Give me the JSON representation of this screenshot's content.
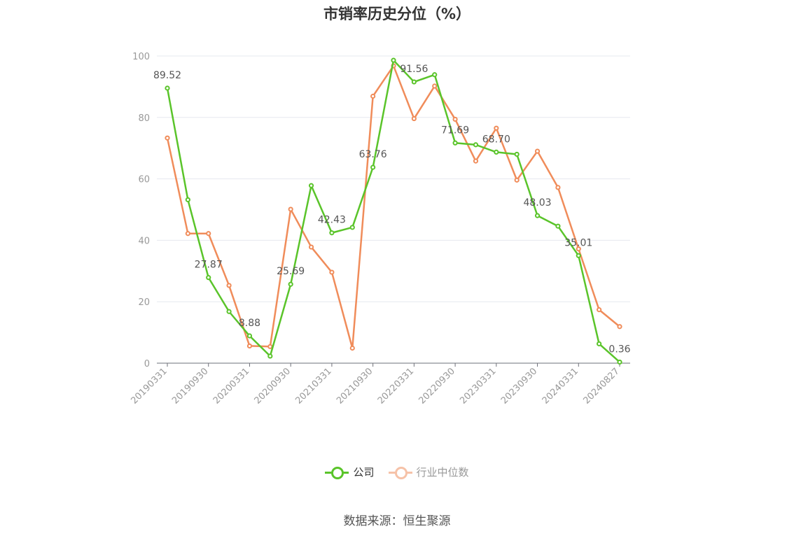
{
  "chart_data": {
    "type": "line",
    "title": "市销率历史分位（%）",
    "source": "数据来源：恒生聚源",
    "ylim": [
      0,
      100
    ],
    "y_ticks": [
      0,
      20,
      40,
      60,
      80,
      100
    ],
    "x_tick_labels": [
      "20190331",
      "20190930",
      "20200331",
      "20200930",
      "20210331",
      "20210930",
      "20220331",
      "20220930",
      "20230331",
      "20230930",
      "20240331",
      "20240827"
    ],
    "x_tick_indices": [
      0,
      2,
      4,
      6,
      8,
      10,
      12,
      14,
      16,
      18,
      20,
      22
    ],
    "grid": true,
    "legend_position": "bottom",
    "series": [
      {
        "name": "公司",
        "color": "#5ac42a",
        "values": [
          89.52,
          53.2,
          27.87,
          16.8,
          8.88,
          2.3,
          25.69,
          57.8,
          42.43,
          44.2,
          63.76,
          98.6,
          91.56,
          93.9,
          71.69,
          71.1,
          68.7,
          68.0,
          48.03,
          44.6,
          35.01,
          6.3,
          0.36
        ],
        "labels": {
          "0": "89.52",
          "2": "27.87",
          "4": "8.88",
          "6": "25.69",
          "8": "42.43",
          "10": "63.76",
          "12": "91.56",
          "14": "71.69",
          "16": "68.70",
          "18": "48.03",
          "20": "35.01",
          "22": "0.36"
        }
      },
      {
        "name": "行业中位数",
        "color": "#f08c5a",
        "values": [
          73.3,
          42.2,
          42.2,
          25.3,
          5.6,
          5.4,
          50.1,
          37.8,
          29.6,
          4.9,
          86.9,
          96.8,
          79.6,
          90.2,
          79.4,
          65.8,
          76.5,
          59.6,
          69.0,
          57.2,
          37.2,
          17.4,
          11.9
        ]
      }
    ]
  }
}
